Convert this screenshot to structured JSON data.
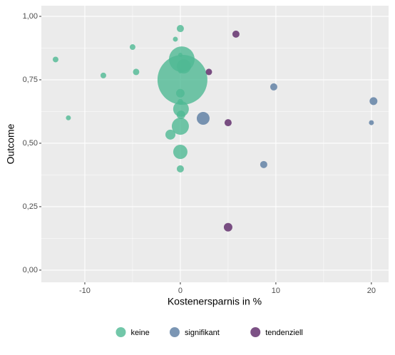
{
  "chart_data": {
    "type": "scatter",
    "x_label": "Kostenersparnis in %",
    "y_label": "Outcome",
    "xlim": [
      -14.55,
      21.8
    ],
    "ylim": [
      -0.048,
      1.042
    ],
    "xticks": [
      -10,
      0,
      10,
      20
    ],
    "yticks": [
      {
        "value": 0,
        "label": "0,00"
      },
      {
        "value": 0.25,
        "label": "0,25"
      },
      {
        "value": 0.5,
        "label": "0,50"
      },
      {
        "value": 0.75,
        "label": "0,75"
      },
      {
        "value": 1,
        "label": "1,00"
      }
    ],
    "grid": true,
    "legend": "bottom",
    "series": [
      {
        "name": "keine",
        "color": "#4fb993",
        "x": [
          -13.06,
          -11.72,
          -8.06,
          -5.0,
          -4.63,
          -0.52,
          0,
          0.15,
          0,
          0.37,
          0,
          0.22,
          0,
          0,
          0.07,
          0.07,
          0,
          -1.04,
          0,
          0
        ],
        "values": [
          0.83,
          0.6,
          0.767,
          0.879,
          0.781,
          0.91,
          0.952,
          0.831,
          0.848,
          0.803,
          0.784,
          0.75,
          0.697,
          0.663,
          0.635,
          0.612,
          0.567,
          0.534,
          0.466,
          0.399
        ],
        "sizes": [
          16,
          12,
          16,
          16,
          20,
          12,
          25,
          324,
          9,
          100,
          9,
          1225,
          36,
          16,
          121,
          36,
          144,
          49,
          100,
          25
        ]
      },
      {
        "name": "signifikant",
        "color": "#5a7ca1",
        "x": [
          2.39,
          9.78,
          8.73,
          20.22,
          20.0
        ],
        "values": [
          0.598,
          0.722,
          0.416,
          0.666,
          0.581
        ],
        "sizes": [
          81,
          25,
          25,
          30,
          12
        ]
      },
      {
        "name": "tendenziell",
        "color": "#5b2566",
        "x": [
          5.82,
          2.99,
          5.0,
          5.0
        ],
        "values": [
          0.93,
          0.781,
          0.581,
          0.169
        ],
        "sizes": [
          25,
          20,
          25,
          36
        ]
      }
    ]
  }
}
